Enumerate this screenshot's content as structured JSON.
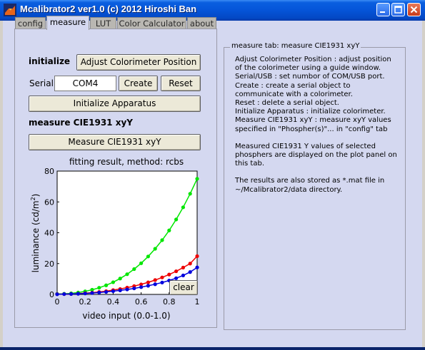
{
  "window": {
    "title": "Mcalibrator2 ver1.0 (c) 2012 Hiroshi Ban",
    "icons": [
      "matlab-icon",
      "minimize-icon",
      "maximize-icon",
      "close-icon"
    ]
  },
  "tabs": [
    {
      "label": "config",
      "active": false
    },
    {
      "label": "measure",
      "active": true
    },
    {
      "label": "LUT",
      "active": false
    },
    {
      "label": "Color Calculator",
      "active": false
    },
    {
      "label": "about",
      "active": false
    }
  ],
  "measure": {
    "initialize_label": "initialize",
    "adjust_button": "Adjust Colorimeter Position",
    "serial_label": "Serial",
    "serial_value": "COM4",
    "create_button": "Create",
    "reset_button": "Reset",
    "init_apparatus_button": "Initialize Apparatus",
    "measure_heading": "measure CIE1931 xyY",
    "measure_button": "Measure CIE1931 xyY",
    "clear_button": "clear"
  },
  "info": {
    "title": "measure tab: measure CIE1931 xyY",
    "paragraphs": [
      [
        "Adjust Colorimeter Position : adjust position",
        "of the colorimeter using a guide window.",
        "Serial/USB : set numbor of COM/USB port.",
        "Create : create a serial object to",
        "communicate with a colorimeter.",
        "Reset : delete a serial object.",
        "Initialize Apparatus : initialize colorimeter.",
        "Measure CIE1931 xyY : measure xyY values",
        "specified in \"Phospher(s)\"... in \"config\" tab"
      ],
      [
        "Measured CIE1931 Y values of selected",
        "phosphers are displayed on the plot panel on",
        "this tab."
      ],
      [
        "The results are also stored as *.mat file in",
        "~/Mcalibrator2/data directory."
      ]
    ]
  },
  "chart_data": {
    "type": "line",
    "title": "fitting result, method: rcbs",
    "xlabel": "video input (0.0-1.0)",
    "ylabel": "luminance (cd/m²)",
    "xlim": [
      0,
      1
    ],
    "ylim": [
      0,
      80
    ],
    "xticks": [
      "0",
      "0.2",
      "0.4",
      "0.6",
      "0.8",
      "1"
    ],
    "yticks": [
      "0",
      "20",
      "40",
      "60",
      "80"
    ],
    "grid": false,
    "x": [
      0,
      0.05,
      0.1,
      0.15,
      0.2,
      0.25,
      0.3,
      0.35,
      0.4,
      0.45,
      0.5,
      0.55,
      0.6,
      0.65,
      0.7,
      0.75,
      0.8,
      0.85,
      0.9,
      0.95,
      1.0
    ],
    "series": [
      {
        "color": "#00e600",
        "values": [
          0.3,
          0.4,
          0.7,
          1.2,
          2.0,
          3.0,
          4.3,
          5.9,
          7.9,
          10.3,
          13.1,
          16.4,
          20.2,
          24.6,
          29.6,
          35.2,
          41.5,
          48.6,
          56.5,
          65.3,
          75.0
        ]
      },
      {
        "color": "#ee0000",
        "values": [
          0.2,
          0.2,
          0.3,
          0.5,
          0.8,
          1.1,
          1.6,
          2.1,
          2.8,
          3.5,
          4.4,
          5.4,
          6.5,
          7.8,
          9.3,
          11.0,
          12.9,
          15.0,
          17.4,
          20.0,
          24.8
        ]
      },
      {
        "color": "#0000dd",
        "values": [
          0.1,
          0.2,
          0.3,
          0.4,
          0.6,
          0.9,
          1.2,
          1.6,
          2.1,
          2.6,
          3.2,
          3.9,
          4.7,
          5.6,
          6.6,
          7.7,
          9.0,
          10.5,
          12.3,
          14.5,
          17.5
        ]
      }
    ]
  }
}
